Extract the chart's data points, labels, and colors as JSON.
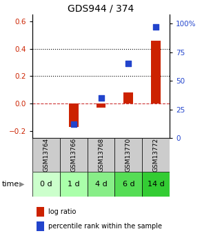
{
  "title": "GDS944 / 374",
  "categories": [
    "GSM13764",
    "GSM13766",
    "GSM13768",
    "GSM13770",
    "GSM13772"
  ],
  "time_labels": [
    "0 d",
    "1 d",
    "4 d",
    "6 d",
    "14 d"
  ],
  "log_ratio": [
    0.0,
    -0.17,
    -0.03,
    0.08,
    0.46
  ],
  "percentile": [
    null,
    12,
    35,
    65,
    97
  ],
  "ylim_left": [
    -0.25,
    0.65
  ],
  "ylim_right": [
    0,
    108.33
  ],
  "left_ticks": [
    -0.2,
    0.0,
    0.2,
    0.4,
    0.6
  ],
  "right_ticks": [
    0,
    25,
    50,
    75,
    100
  ],
  "bar_color": "#cc2200",
  "dot_color": "#2244cc",
  "bar_width": 0.35,
  "dot_size": 40,
  "title_fontsize": 10,
  "gsm_fontsize": 6.5,
  "time_fontsize": 8,
  "legend_fontsize": 7,
  "cell_bg_gsm": "#cccccc",
  "time_colors": [
    "#ccffcc",
    "#aaffaa",
    "#88ee88",
    "#55dd55",
    "#33cc33"
  ],
  "time_label_arrow_color": "#888888"
}
